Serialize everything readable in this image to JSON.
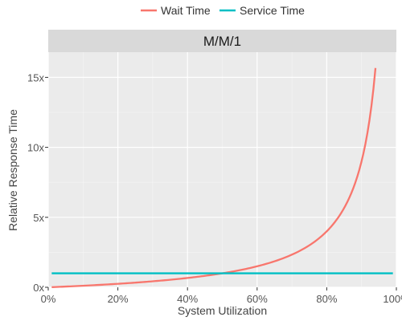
{
  "chart_data": {
    "type": "line",
    "facet_title": "M/M/1",
    "xlabel": "System Utilization",
    "ylabel": "Relative Response Time",
    "xlim": [
      0.0,
      1.0
    ],
    "ylim": [
      0,
      16.8
    ],
    "x_ticks": [
      0,
      0.2,
      0.4,
      0.6,
      0.8,
      1.0
    ],
    "x_tick_labels": [
      "0%",
      "20%",
      "40%",
      "60%",
      "80%",
      "100%"
    ],
    "y_ticks": [
      0,
      5,
      10,
      15
    ],
    "y_tick_labels": [
      "0x",
      "5x",
      "10x",
      "15x"
    ],
    "grid": true,
    "legend_position": "top",
    "series": [
      {
        "name": "Wait Time",
        "color": "#F8766D",
        "x": [
          0.01,
          0.1,
          0.2,
          0.3,
          0.4,
          0.5,
          0.6,
          0.7,
          0.8,
          0.85,
          0.9,
          0.92,
          0.94
        ],
        "y": [
          0.01,
          0.11,
          0.25,
          0.43,
          0.67,
          1.0,
          1.5,
          2.33,
          4.0,
          5.67,
          9.0,
          11.5,
          15.67
        ]
      },
      {
        "name": "Service Time",
        "color": "#00BFC4",
        "x": [
          0.01,
          0.99
        ],
        "y": [
          1,
          1
        ]
      }
    ]
  }
}
